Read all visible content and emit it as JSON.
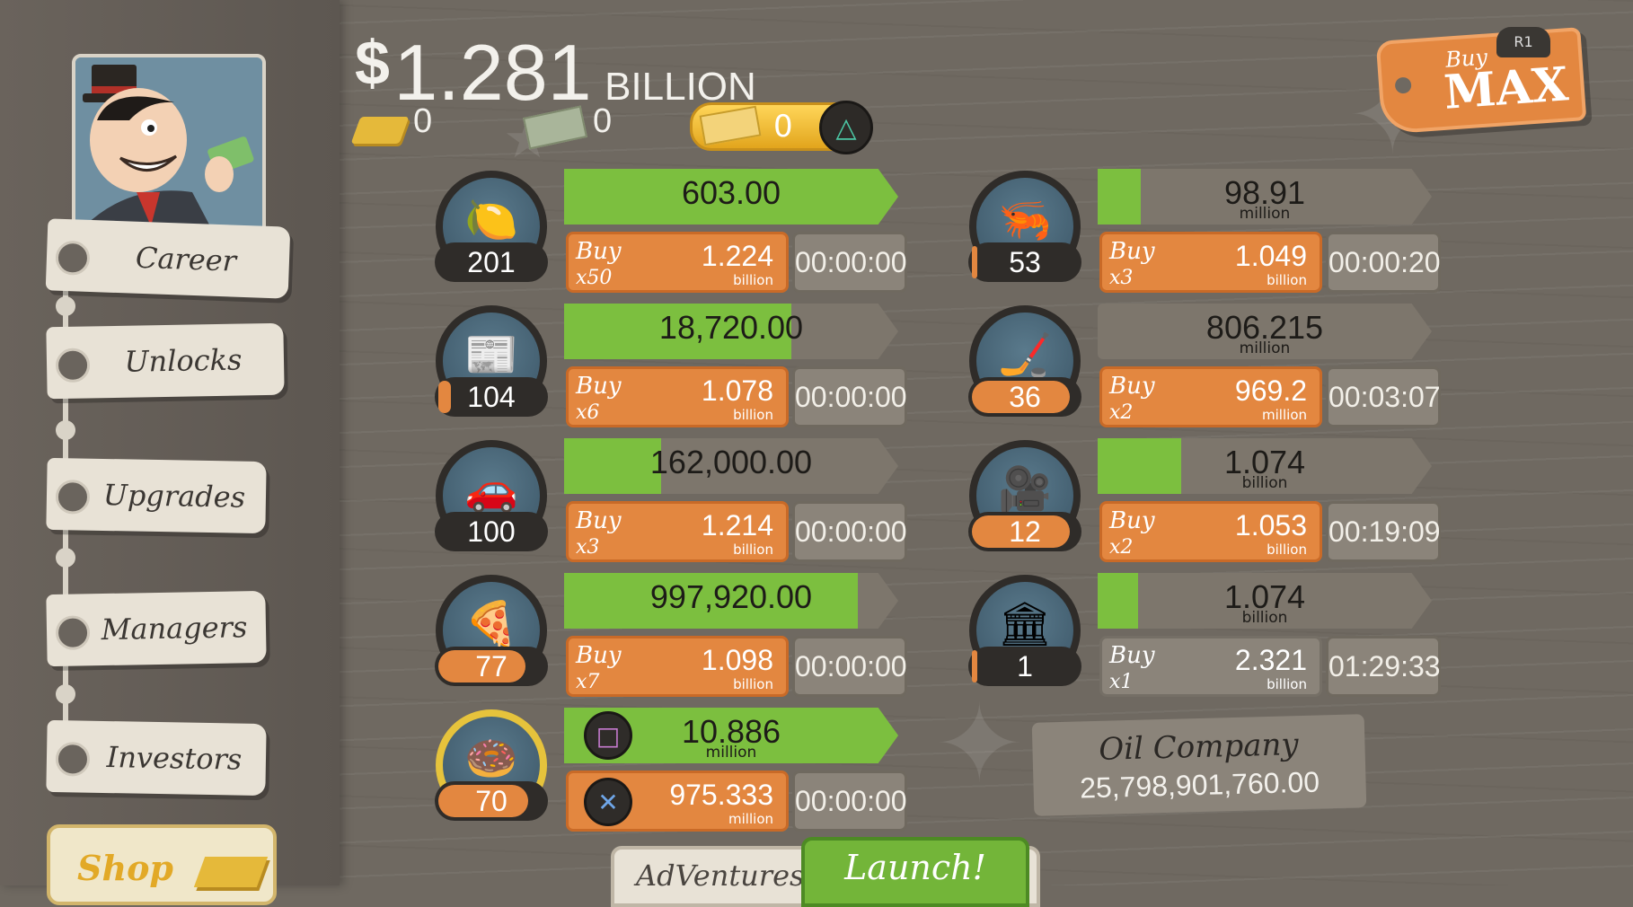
{
  "header": {
    "money_symbol": "$",
    "money_amount": "1.281",
    "money_unit": "BILLION",
    "gold_count": "0",
    "ticket_count": "0",
    "megabucks_count": "0",
    "triangle_button": "△",
    "buy_max": {
      "small": "Buy",
      "big": "MAX",
      "r1": "R1"
    }
  },
  "sidebar": {
    "items": [
      {
        "label": "Career"
      },
      {
        "label": "Unlocks"
      },
      {
        "label": "Upgrades"
      },
      {
        "label": "Managers"
      },
      {
        "label": "Investors"
      }
    ],
    "shop_label": "Shop"
  },
  "businesses_left": [
    {
      "icon": "lemon-icon",
      "glyph": "🍋",
      "count": "201",
      "count_fill": 0.0,
      "progress_value": "603.00",
      "progress_unit": "",
      "progress": 1.0,
      "buy_word": "Buy",
      "buy_mult": "x50",
      "price": "1.224",
      "price_unit": "billion",
      "timer": "00:00:00"
    },
    {
      "icon": "newspaper-icon",
      "glyph": "📰",
      "count": "104",
      "count_fill": 0.12,
      "progress_value": "18,720.00",
      "progress_unit": "",
      "progress": 0.68,
      "buy_word": "Buy",
      "buy_mult": "x6",
      "price": "1.078",
      "price_unit": "billion",
      "timer": "00:00:00"
    },
    {
      "icon": "car-wash-icon",
      "glyph": "🚗",
      "count": "100",
      "count_fill": 0.0,
      "progress_value": "162,000.00",
      "progress_unit": "",
      "progress": 0.29,
      "buy_word": "Buy",
      "buy_mult": "x3",
      "price": "1.214",
      "price_unit": "billion",
      "timer": "00:00:00"
    },
    {
      "icon": "pizza-icon",
      "glyph": "🍕",
      "count": "77",
      "count_fill": 0.82,
      "progress_value": "997,920.00",
      "progress_unit": "",
      "progress": 0.88,
      "buy_word": "Buy",
      "buy_mult": "x7",
      "price": "1.098",
      "price_unit": "billion",
      "timer": "00:00:00"
    }
  ],
  "donut": {
    "count": "70",
    "count_fill": 0.85,
    "progress_value": "10.886",
    "progress_unit": "million",
    "progress": 1.0,
    "square_button": "□",
    "cross_button": "✕",
    "price": "975.333",
    "price_unit": "million",
    "timer": "00:00:00"
  },
  "businesses_right": [
    {
      "icon": "shrimp-icon",
      "glyph": "🦐",
      "count": "53",
      "count_fill": 0.05,
      "progress_value": "98.91",
      "progress_unit": "million",
      "progress": 0.13,
      "buy_word": "Buy",
      "buy_mult": "x3",
      "price": "1.049",
      "price_unit": "billion",
      "timer": "00:00:20",
      "affordable": true
    },
    {
      "icon": "hockey-icon",
      "glyph": "🏒",
      "count": "36",
      "count_fill": 0.92,
      "progress_value": "806.215",
      "progress_unit": "million",
      "progress": 0.0,
      "buy_word": "Buy",
      "buy_mult": "x2",
      "price": "969.2",
      "price_unit": "million",
      "timer": "00:03:07",
      "affordable": true
    },
    {
      "icon": "movie-camera-icon",
      "glyph": "🎥",
      "count": "12",
      "count_fill": 0.92,
      "progress_value": "1.074",
      "progress_unit": "billion",
      "progress": 0.25,
      "buy_word": "Buy",
      "buy_mult": "x2",
      "price": "1.053",
      "price_unit": "billion",
      "timer": "00:19:09",
      "affordable": true
    },
    {
      "icon": "bank-icon",
      "glyph": "🏛",
      "count": "1",
      "count_fill": 0.05,
      "progress_value": "1.074",
      "progress_unit": "billion",
      "progress": 0.12,
      "buy_word": "Buy",
      "buy_mult": "x1",
      "price": "2.321",
      "price_unit": "billion",
      "timer": "01:29:33",
      "affordable": false
    }
  ],
  "oil_company": {
    "name": "Oil Company",
    "value": "25,798,901,760.00"
  },
  "bottom": {
    "adventures": "AdVentures",
    "launch": "Launch!"
  }
}
